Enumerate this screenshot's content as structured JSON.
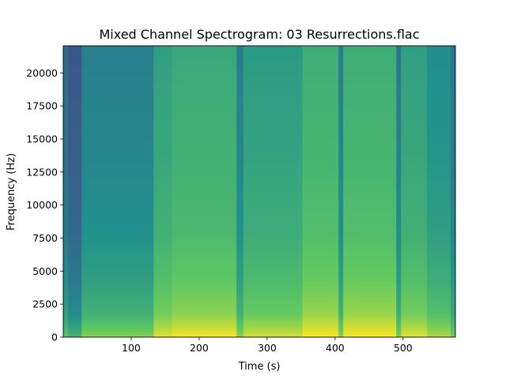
{
  "chart_data": {
    "type": "heatmap",
    "title": "Mixed Channel Spectrogram: 03 Resurrections.flac",
    "xlabel": "Time (s)",
    "ylabel": "Frequency (Hz)",
    "xlim": [
      0,
      577
    ],
    "ylim": [
      0,
      22050
    ],
    "x_ticks": [
      100,
      200,
      300,
      400,
      500
    ],
    "x_tick_labels": [
      "100",
      "200",
      "300",
      "400",
      "500"
    ],
    "y_ticks": [
      0,
      2500,
      5000,
      7500,
      10000,
      12500,
      15000,
      17500,
      20000
    ],
    "y_tick_labels": [
      "0",
      "2500",
      "5000",
      "7500",
      "10000",
      "12500",
      "15000",
      "17500",
      "20000"
    ],
    "colormap": [
      "#440154",
      "#3b528b",
      "#21918c",
      "#5ec962",
      "#fde725"
    ],
    "segments": [
      {
        "start": 0,
        "end": 7,
        "level": 0.36
      },
      {
        "start": 7,
        "end": 27,
        "level": 0.28
      },
      {
        "start": 27,
        "end": 133,
        "level": 0.44
      },
      {
        "start": 133,
        "end": 160,
        "level": 0.58
      },
      {
        "start": 160,
        "end": 255,
        "level": 0.62
      },
      {
        "start": 255,
        "end": 265,
        "level": 0.44
      },
      {
        "start": 265,
        "end": 352,
        "level": 0.56
      },
      {
        "start": 352,
        "end": 405,
        "level": 0.64
      },
      {
        "start": 405,
        "end": 412,
        "level": 0.44
      },
      {
        "start": 412,
        "end": 490,
        "level": 0.64
      },
      {
        "start": 490,
        "end": 497,
        "level": 0.42
      },
      {
        "start": 497,
        "end": 535,
        "level": 0.58
      },
      {
        "start": 535,
        "end": 570,
        "level": 0.5
      },
      {
        "start": 570,
        "end": 577,
        "level": 0.4
      }
    ]
  }
}
